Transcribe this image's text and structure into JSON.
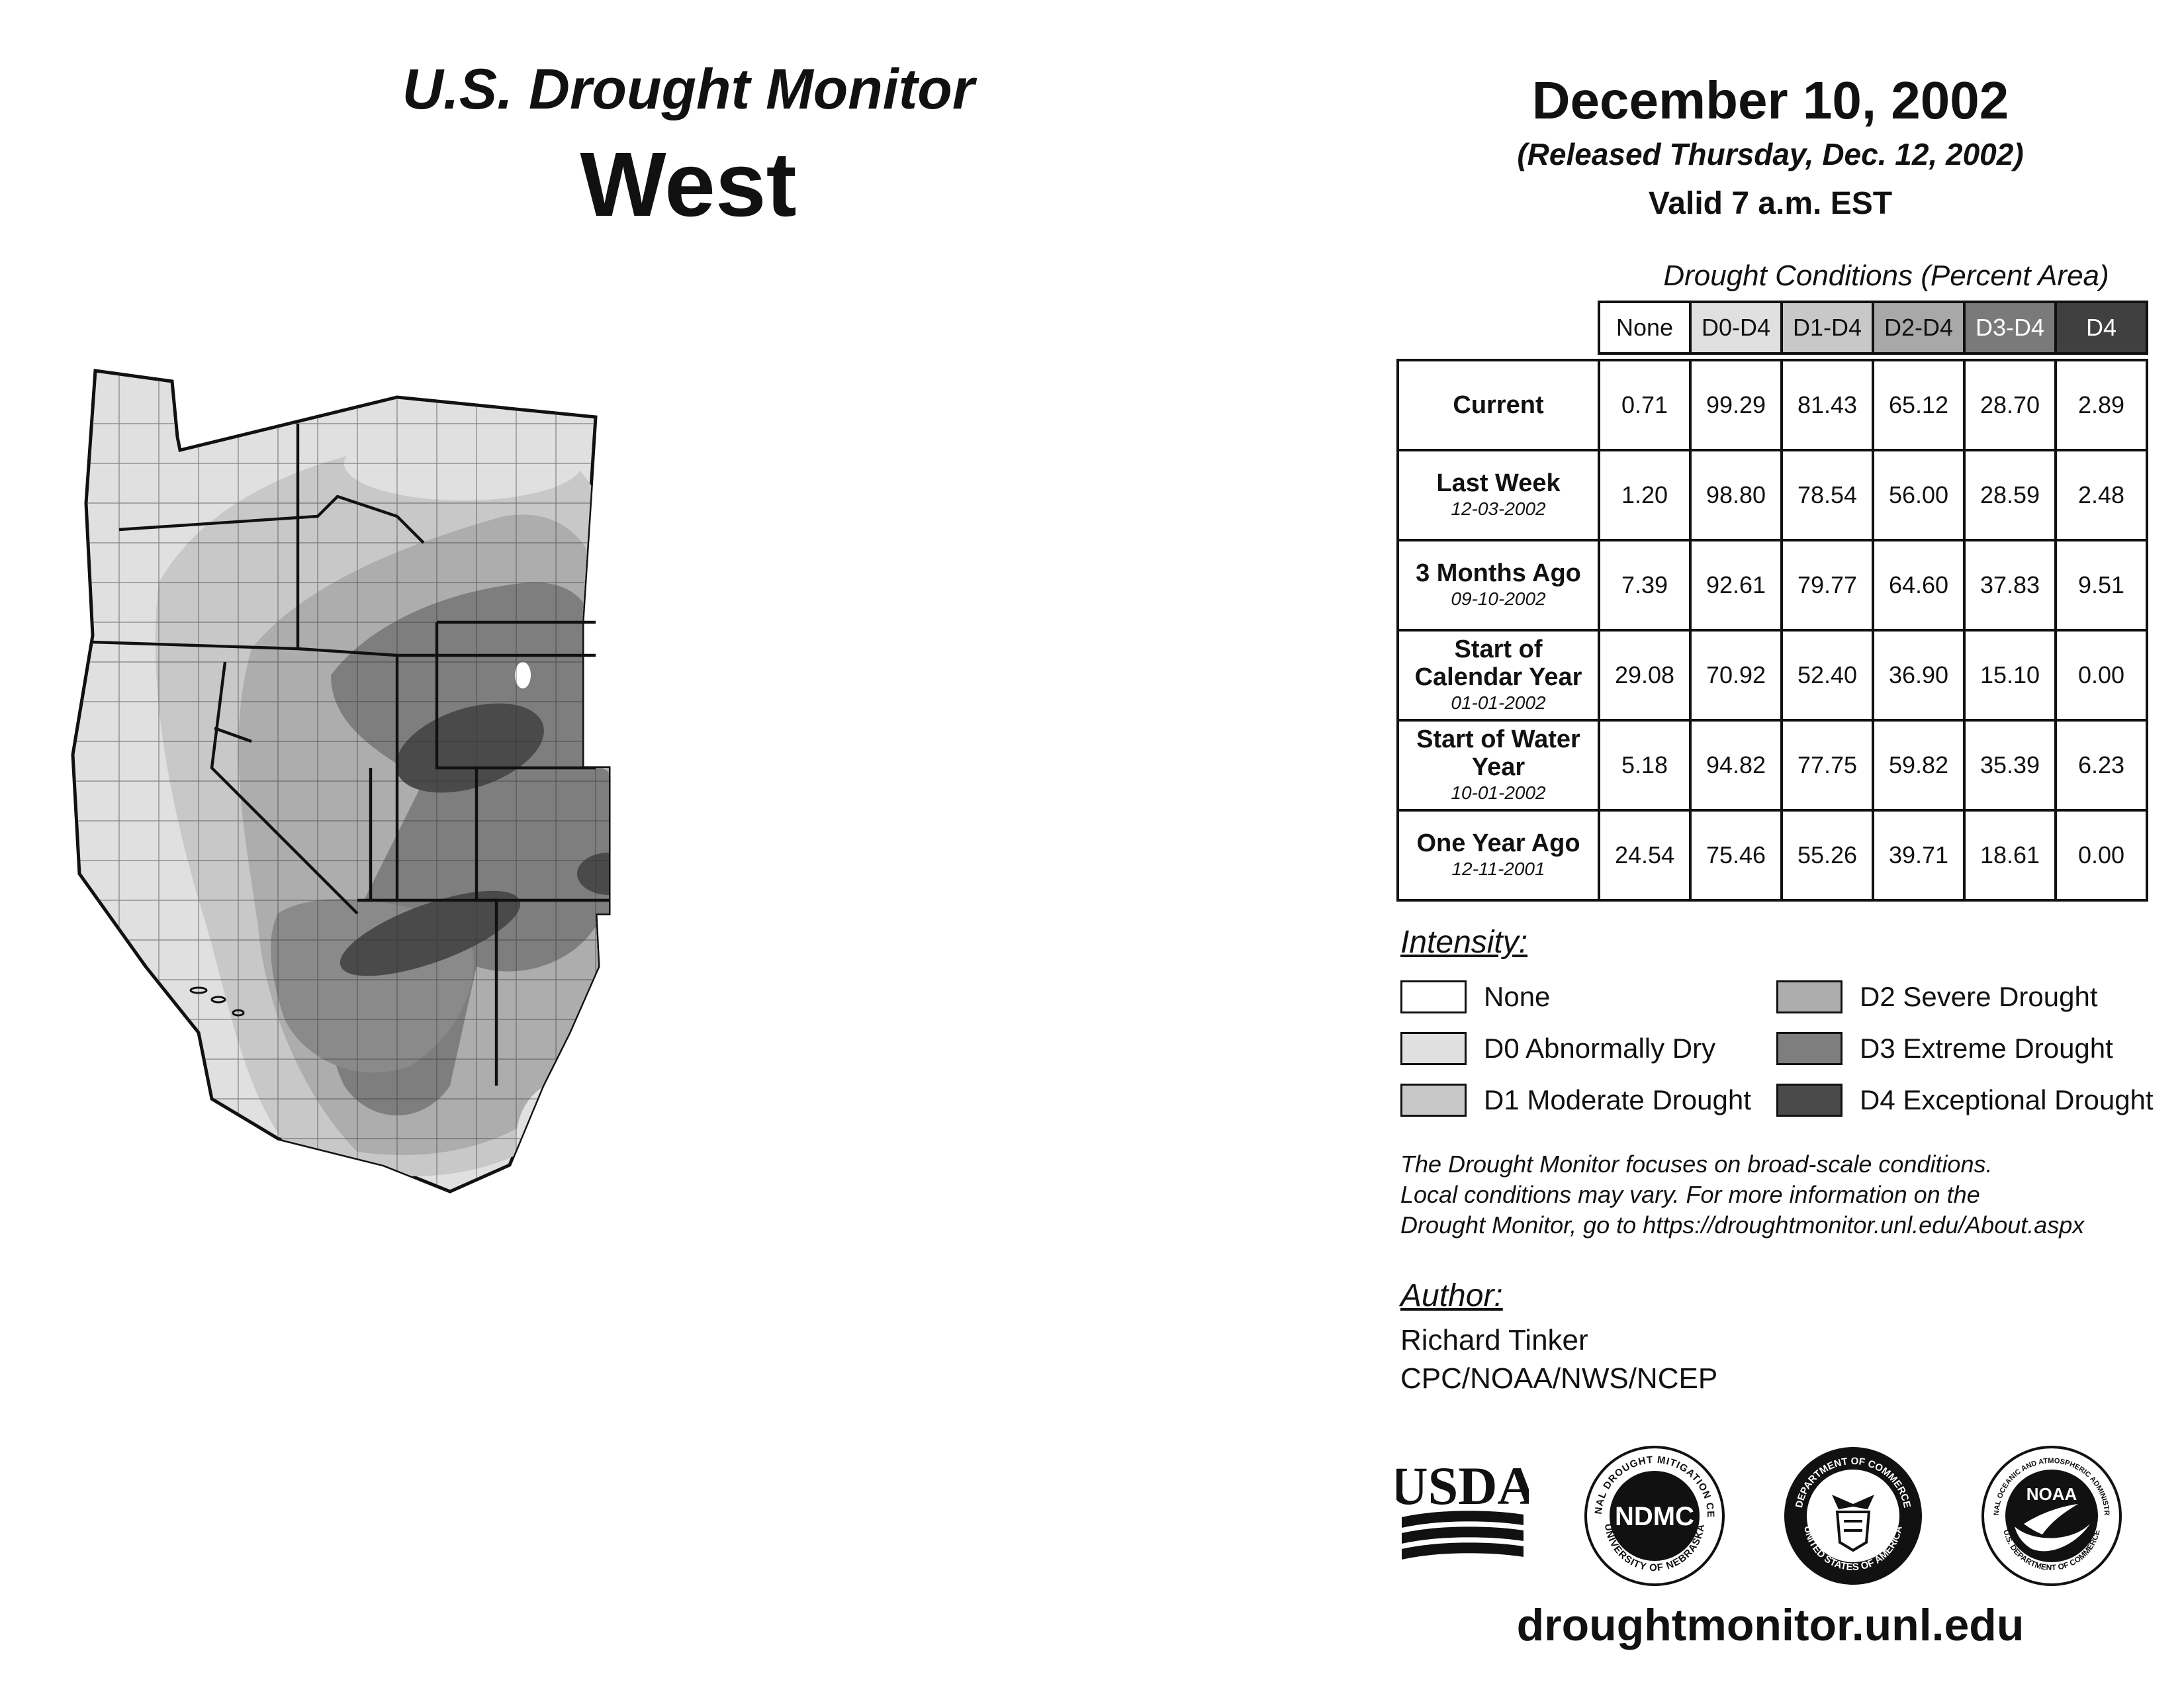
{
  "header": {
    "title_line1": "U.S. Drought Monitor",
    "title_line2": "West",
    "date": "December 10, 2002",
    "released": "(Released Thursday, Dec. 12, 2002)",
    "valid": "Valid 7 a.m. EST"
  },
  "conditions": {
    "title": "Drought Conditions (Percent Area)",
    "columns": [
      "None",
      "D0-D4",
      "D1-D4",
      "D2-D4",
      "D3-D4",
      "D4"
    ],
    "column_colors": [
      "#ffffff",
      "#e0e0e0",
      "#c8c8c8",
      "#a8a8a8",
      "#7a7a7a",
      "#404040"
    ],
    "rows": [
      {
        "label": "Current",
        "sub": "",
        "values": [
          "0.71",
          "99.29",
          "81.43",
          "65.12",
          "28.70",
          "2.89"
        ]
      },
      {
        "label": "Last Week",
        "sub": "12-03-2002",
        "values": [
          "1.20",
          "98.80",
          "78.54",
          "56.00",
          "28.59",
          "2.48"
        ]
      },
      {
        "label": "3 Months Ago",
        "sub": "09-10-2002",
        "values": [
          "7.39",
          "92.61",
          "79.77",
          "64.60",
          "37.83",
          "9.51"
        ]
      },
      {
        "label": "Start of Calendar Year",
        "sub": "01-01-2002",
        "values": [
          "29.08",
          "70.92",
          "52.40",
          "36.90",
          "15.10",
          "0.00"
        ]
      },
      {
        "label": "Start of Water Year",
        "sub": "10-01-2002",
        "values": [
          "5.18",
          "94.82",
          "77.75",
          "59.82",
          "35.39",
          "6.23"
        ]
      },
      {
        "label": "One Year Ago",
        "sub": "12-11-2001",
        "values": [
          "24.54",
          "75.46",
          "55.26",
          "39.71",
          "18.61",
          "0.00"
        ]
      }
    ]
  },
  "intensity": {
    "title": "Intensity:",
    "items": [
      {
        "label": "None",
        "color": "#ffffff"
      },
      {
        "label": "D0 Abnormally Dry",
        "color": "#e0e0e0"
      },
      {
        "label": "D1 Moderate Drought",
        "color": "#c8c8c8"
      },
      {
        "label": "D2 Severe Drought",
        "color": "#adadad"
      },
      {
        "label": "D3 Extreme Drought",
        "color": "#7e7e7e"
      },
      {
        "label": "D4 Exceptional Drought",
        "color": "#4a4a4a"
      }
    ]
  },
  "disclaimer": {
    "line1": "The Drought Monitor focuses on broad-scale conditions.",
    "line2": "Local conditions may vary. For more information on the",
    "line3": "Drought Monitor, go to https://droughtmonitor.unl.edu/About.aspx"
  },
  "author": {
    "title": "Author:",
    "name": "Richard Tinker",
    "org": "CPC/NOAA/NWS/NCEP"
  },
  "logos": {
    "usda": "USDA",
    "ndmc": "NDMC",
    "ndmc_ring_top": "NATIONAL DROUGHT MITIGATION CENTER",
    "ndmc_ring_bottom": "UNIVERSITY OF NEBRASKA",
    "doc_ring_top": "DEPARTMENT OF COMMERCE",
    "doc_ring_bottom": "UNITED STATES OF AMERICA",
    "noaa": "NOAA",
    "noaa_ring_top": "NATIONAL OCEANIC AND ATMOSPHERIC ADMINISTRATION",
    "noaa_ring_bottom": "U.S. DEPARTMENT OF COMMERCE"
  },
  "website": "droughtmonitor.unl.edu"
}
